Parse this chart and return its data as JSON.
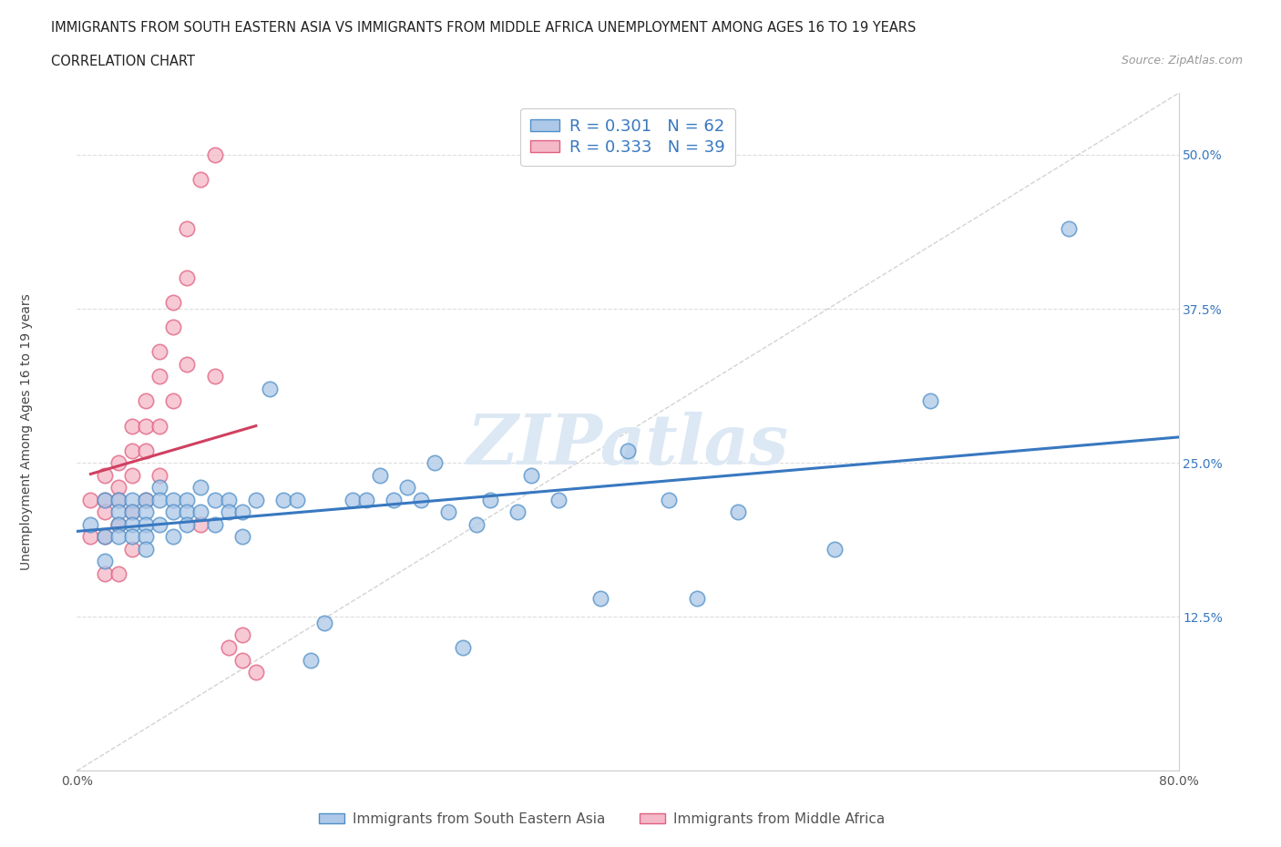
{
  "title_line1": "IMMIGRANTS FROM SOUTH EASTERN ASIA VS IMMIGRANTS FROM MIDDLE AFRICA UNEMPLOYMENT AMONG AGES 16 TO 19 YEARS",
  "title_line2": "CORRELATION CHART",
  "source": "Source: ZipAtlas.com",
  "ylabel": "Unemployment Among Ages 16 to 19 years",
  "xlim": [
    0.0,
    0.8
  ],
  "ylim": [
    0.0,
    0.55
  ],
  "xticks": [
    0.0,
    0.2,
    0.4,
    0.6,
    0.8
  ],
  "xticklabels": [
    "0.0%",
    "",
    "",
    "",
    "80.0%"
  ],
  "yticks": [
    0.0,
    0.125,
    0.25,
    0.375,
    0.5
  ],
  "yticklabels": [
    "",
    "12.5%",
    "25.0%",
    "37.5%",
    "50.0%"
  ],
  "R_blue": 0.301,
  "N_blue": 62,
  "R_pink": 0.333,
  "N_pink": 39,
  "blue_fill": "#adc8e8",
  "pink_fill": "#f5b8c8",
  "blue_edge": "#5090c8",
  "pink_edge": "#e06080",
  "blue_line": "#3878c0",
  "pink_line": "#d04060",
  "ref_line_color": "#c8c8c8",
  "watermark": "ZIPatlas",
  "legend_label_blue": "Immigrants from South Eastern Asia",
  "legend_label_pink": "Immigrants from Middle Africa",
  "blue_x": [
    0.01,
    0.02,
    0.02,
    0.02,
    0.03,
    0.03,
    0.03,
    0.03,
    0.04,
    0.04,
    0.04,
    0.04,
    0.05,
    0.05,
    0.05,
    0.05,
    0.05,
    0.06,
    0.06,
    0.06,
    0.07,
    0.07,
    0.07,
    0.08,
    0.08,
    0.08,
    0.09,
    0.09,
    0.1,
    0.1,
    0.11,
    0.11,
    0.12,
    0.12,
    0.13,
    0.14,
    0.15,
    0.16,
    0.17,
    0.18,
    0.2,
    0.21,
    0.22,
    0.23,
    0.24,
    0.25,
    0.26,
    0.27,
    0.28,
    0.29,
    0.3,
    0.32,
    0.33,
    0.35,
    0.38,
    0.4,
    0.43,
    0.45,
    0.48,
    0.55,
    0.62,
    0.72
  ],
  "blue_y": [
    0.2,
    0.22,
    0.19,
    0.17,
    0.22,
    0.21,
    0.2,
    0.19,
    0.22,
    0.21,
    0.2,
    0.19,
    0.22,
    0.21,
    0.2,
    0.19,
    0.18,
    0.23,
    0.22,
    0.2,
    0.22,
    0.21,
    0.19,
    0.22,
    0.21,
    0.2,
    0.23,
    0.21,
    0.22,
    0.2,
    0.22,
    0.21,
    0.19,
    0.21,
    0.22,
    0.31,
    0.22,
    0.22,
    0.09,
    0.12,
    0.22,
    0.22,
    0.24,
    0.22,
    0.23,
    0.22,
    0.25,
    0.21,
    0.1,
    0.2,
    0.22,
    0.21,
    0.24,
    0.22,
    0.14,
    0.26,
    0.22,
    0.14,
    0.21,
    0.18,
    0.3,
    0.44
  ],
  "pink_x": [
    0.01,
    0.01,
    0.02,
    0.02,
    0.02,
    0.02,
    0.02,
    0.03,
    0.03,
    0.03,
    0.03,
    0.03,
    0.04,
    0.04,
    0.04,
    0.04,
    0.04,
    0.05,
    0.05,
    0.05,
    0.05,
    0.06,
    0.06,
    0.06,
    0.06,
    0.07,
    0.07,
    0.07,
    0.08,
    0.08,
    0.08,
    0.09,
    0.09,
    0.1,
    0.1,
    0.11,
    0.12,
    0.12,
    0.13
  ],
  "pink_y": [
    0.22,
    0.19,
    0.24,
    0.22,
    0.21,
    0.19,
    0.16,
    0.25,
    0.23,
    0.22,
    0.2,
    0.16,
    0.28,
    0.26,
    0.24,
    0.21,
    0.18,
    0.3,
    0.28,
    0.26,
    0.22,
    0.34,
    0.32,
    0.28,
    0.24,
    0.38,
    0.36,
    0.3,
    0.44,
    0.4,
    0.33,
    0.48,
    0.2,
    0.5,
    0.32,
    0.1,
    0.11,
    0.09,
    0.08
  ]
}
